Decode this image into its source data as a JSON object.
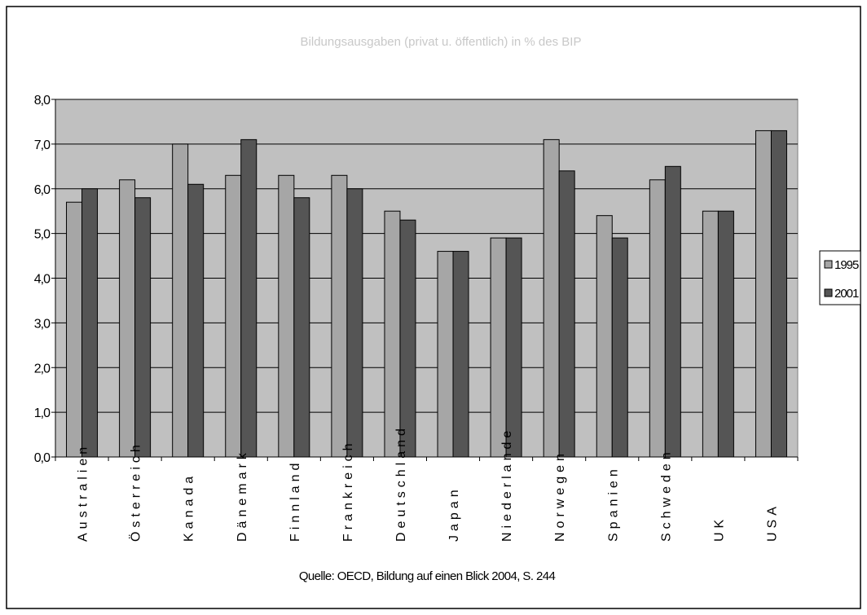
{
  "chart_data": {
    "type": "bar",
    "title": "Bildungsausgaben (privat u. öffentlich) in % des BIP",
    "source": "Quelle: OECD, Bildung auf einen Blick 2004, S. 244",
    "categories": [
      "Australien",
      "Österreich",
      "Kanada",
      "Dänemark",
      "Finnland",
      "Frankreich",
      "Deutschland",
      "Japan",
      "Niederlande",
      "Norwegen",
      "Spanien",
      "Schweden",
      "UK",
      "USA"
    ],
    "series": [
      {
        "name": "1995",
        "color": "#a6a6a6",
        "values": [
          5.7,
          6.2,
          7.0,
          6.3,
          6.3,
          6.3,
          5.5,
          4.6,
          4.9,
          7.1,
          5.4,
          6.2,
          5.5,
          7.3
        ]
      },
      {
        "name": "2001",
        "color": "#555555",
        "values": [
          6.0,
          5.8,
          6.1,
          7.1,
          5.8,
          6.0,
          5.3,
          4.6,
          4.9,
          6.4,
          4.9,
          6.5,
          5.5,
          7.3
        ]
      }
    ],
    "yticks": [
      "0,0",
      "1,0",
      "2,0",
      "3,0",
      "4,0",
      "5,0",
      "6,0",
      "7,0",
      "8,0"
    ],
    "ylim": [
      0,
      8
    ],
    "grid": true,
    "legend_position": "right",
    "plot_background": "#c0c0c0",
    "xlabel": "",
    "ylabel": ""
  }
}
